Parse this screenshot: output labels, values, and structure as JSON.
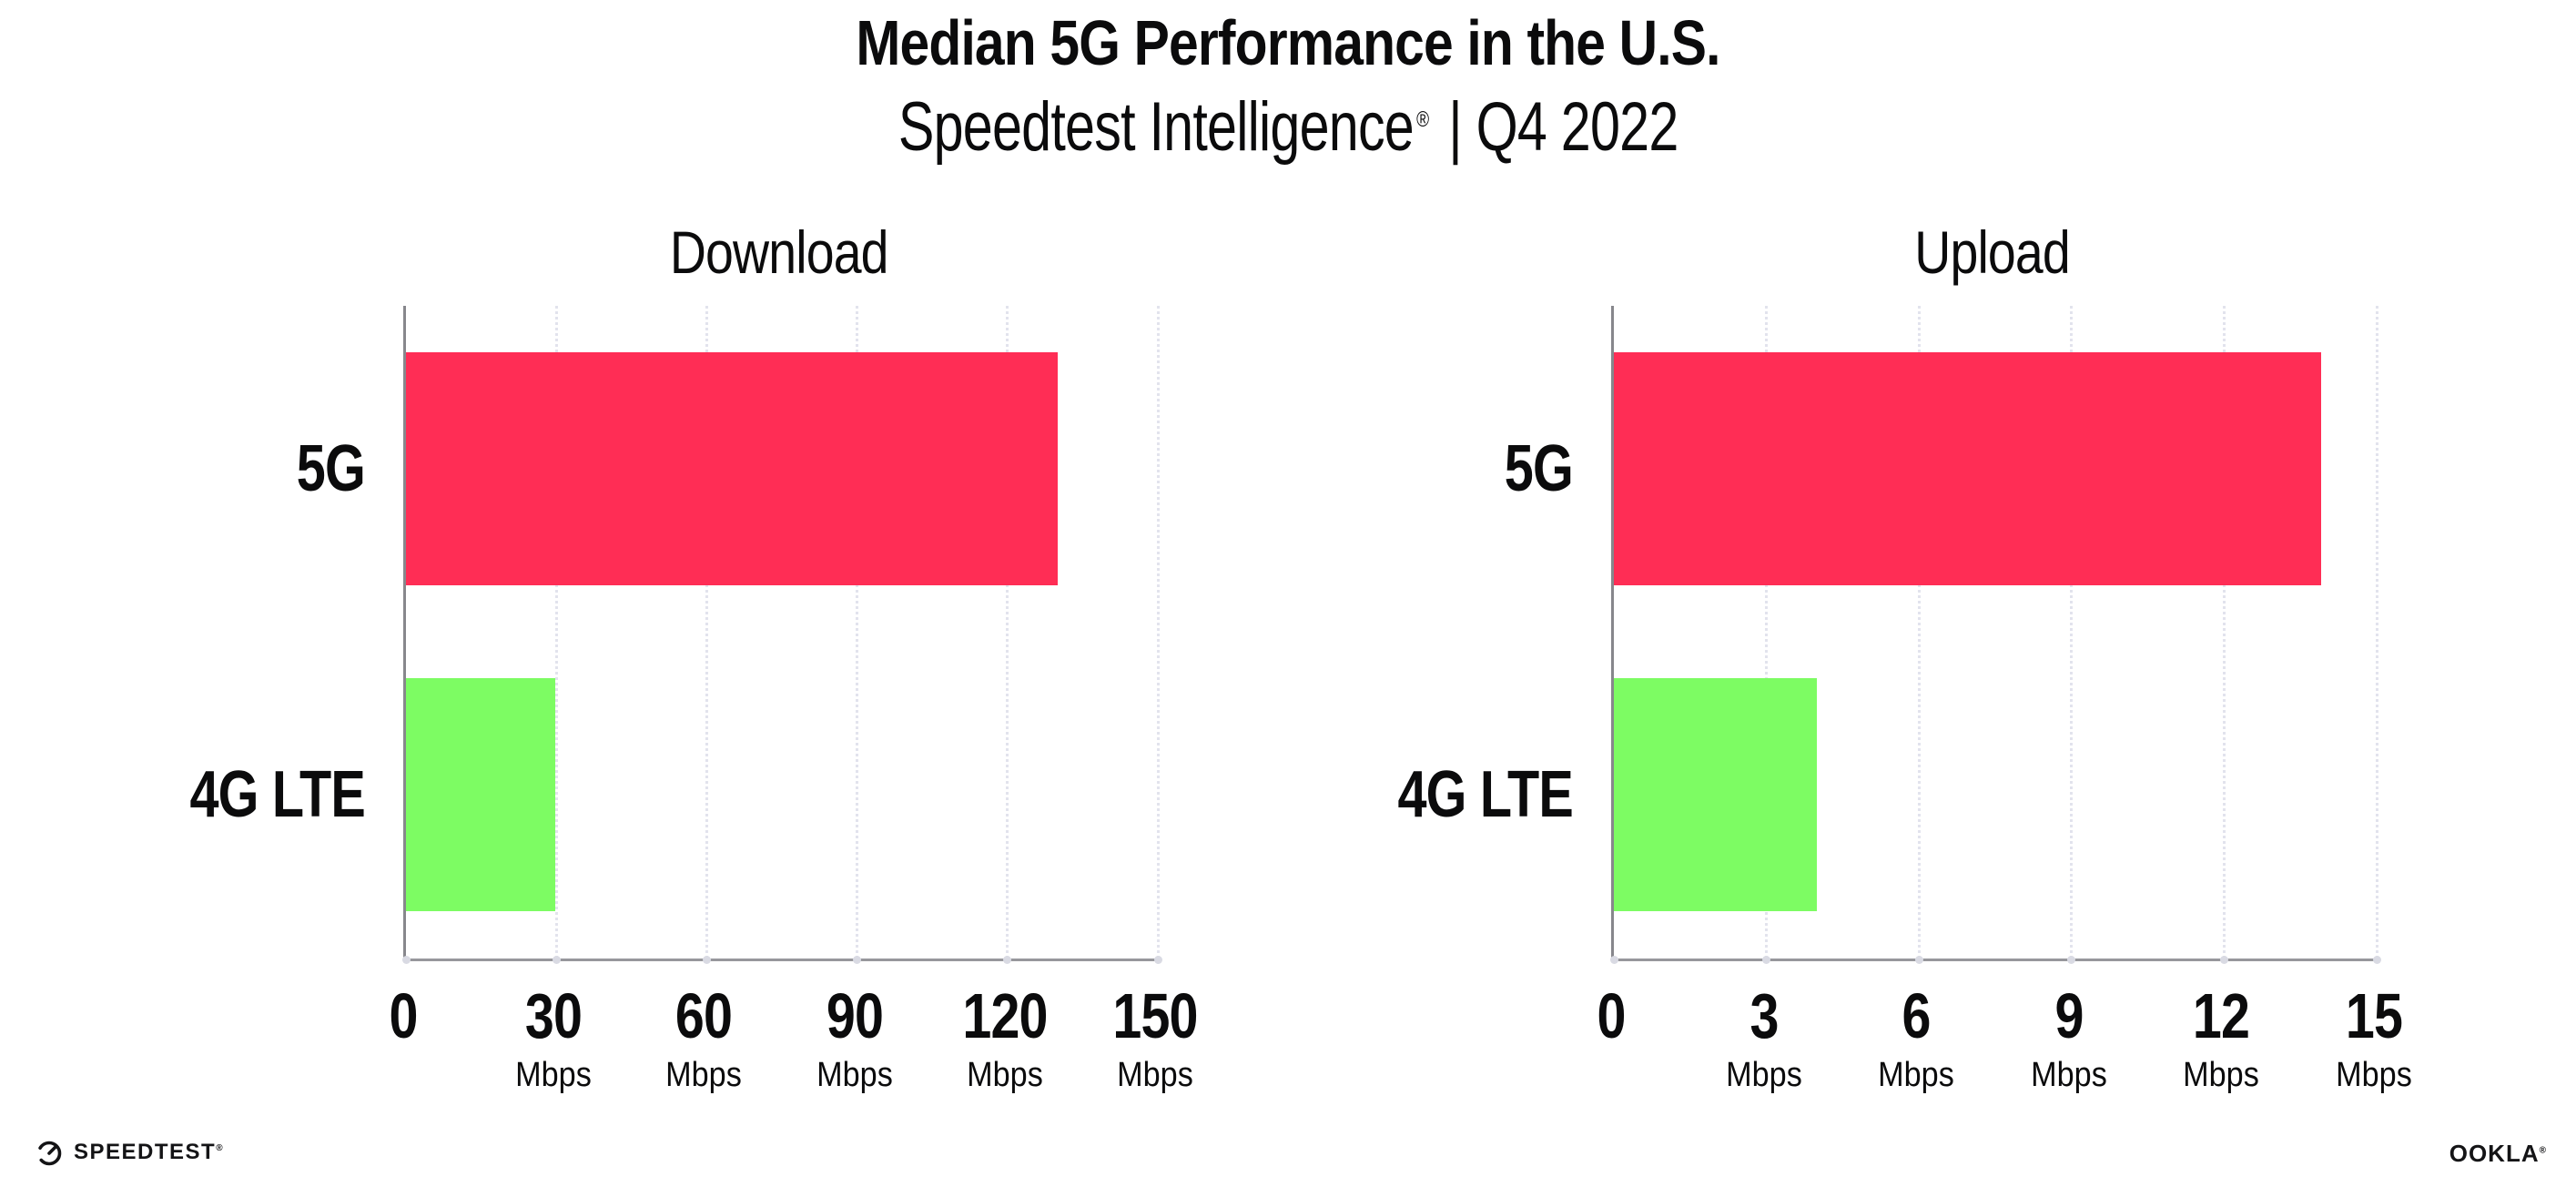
{
  "header": {
    "title": "Median 5G Performance in the U.S.",
    "subtitle_brand": "Speedtest Intelligence",
    "subtitle_reg": "®",
    "subtitle_rest": "| Q4 2022"
  },
  "footer": {
    "speedtest_wordmark": "SPEEDTEST",
    "speedtest_reg": "®",
    "ookla_wordmark": "OOKLA",
    "ookla_reg": "®"
  },
  "colors": {
    "bar_5g": "#FF2D55",
    "bar_4g_lte": "#7DFC63",
    "axis_spine": "#97979c",
    "gridline": "#e2e3ed",
    "text": "#0b0b0c"
  },
  "chart_data": [
    {
      "type": "bar",
      "orientation": "horizontal",
      "title": "Download",
      "categories": [
        "5G",
        "4G LTE"
      ],
      "values": [
        130,
        29.8
      ],
      "unit": "Mbps",
      "xlim": [
        0,
        150
      ],
      "xticks": [
        0,
        30,
        60,
        90,
        120,
        150
      ],
      "grid": "dotted vertical gridlines at each tick",
      "legend": "none"
    },
    {
      "type": "bar",
      "orientation": "horizontal",
      "title": "Upload",
      "categories": [
        "5G",
        "4G LTE"
      ],
      "values": [
        13.9,
        4
      ],
      "unit": "Mbps",
      "xlim": [
        0,
        15
      ],
      "xticks": [
        0,
        3,
        6,
        9,
        12,
        15
      ],
      "grid": "dotted vertical gridlines at each tick",
      "legend": "none"
    }
  ]
}
